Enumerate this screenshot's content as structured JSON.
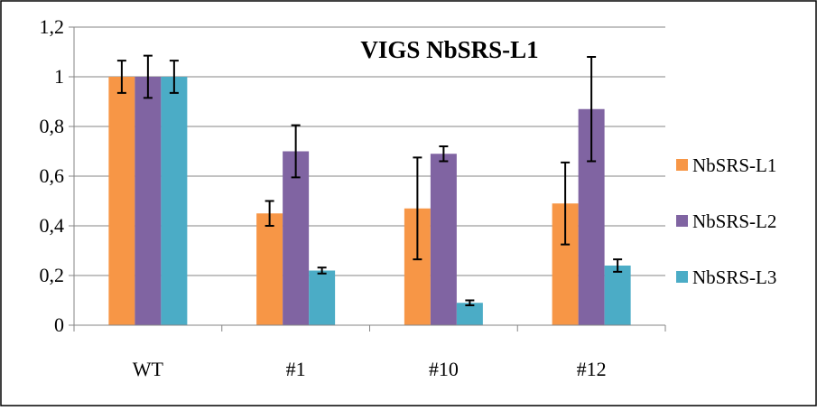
{
  "chart_data": {
    "type": "bar",
    "title": "VIGS NbSRS-L1",
    "xlabel": "",
    "ylabel": "",
    "categories": [
      "WT",
      "#1",
      "#10",
      "#12"
    ],
    "ylim": [
      0,
      1.2
    ],
    "yticks": [
      "0",
      "0,2",
      "0,4",
      "0,6",
      "0,8",
      "1",
      "1,2"
    ],
    "ytick_values": [
      0,
      0.2,
      0.4,
      0.6,
      0.8,
      1.0,
      1.2
    ],
    "grid": true,
    "legend_position": "right",
    "series": [
      {
        "name": "NbSRS-L1",
        "color": "#F79646",
        "values": [
          1.0,
          0.45,
          0.47,
          0.49
        ],
        "errors": [
          0.065,
          0.05,
          0.205,
          0.165
        ]
      },
      {
        "name": "NbSRS-L2",
        "color": "#8064A2",
        "values": [
          1.0,
          0.7,
          0.69,
          0.87
        ],
        "errors": [
          0.085,
          0.105,
          0.03,
          0.21
        ]
      },
      {
        "name": "NbSRS-L3",
        "color": "#4BACC6",
        "values": [
          1.0,
          0.22,
          0.09,
          0.24
        ],
        "errors": [
          0.065,
          0.012,
          0.01,
          0.025
        ]
      }
    ]
  }
}
